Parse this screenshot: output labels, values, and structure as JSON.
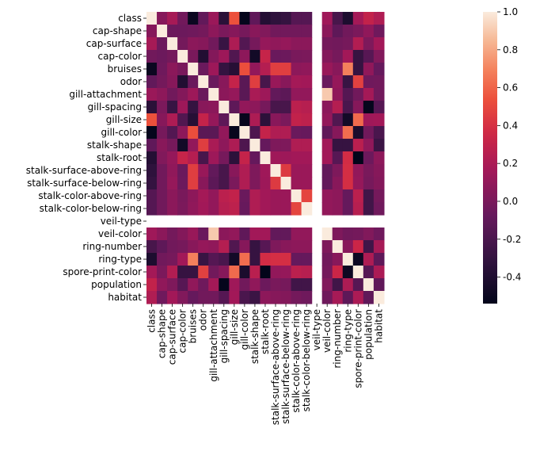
{
  "chart_data": {
    "type": "heatmap",
    "title": "",
    "xlabel": "",
    "ylabel": "",
    "labels": [
      "class",
      "cap-shape",
      "cap-surface",
      "cap-color",
      "bruises",
      "odor",
      "gill-attachment",
      "gill-spacing",
      "gill-size",
      "gill-color",
      "stalk-shape",
      "stalk-root",
      "stalk-surface-above-ring",
      "stalk-surface-below-ring",
      "stalk-color-above-ring",
      "stalk-color-below-ring",
      "veil-type",
      "veil-color",
      "ring-number",
      "ring-type",
      "spore-print-color",
      "population",
      "habitat"
    ],
    "x_labels": [
      "class",
      "cap-shape",
      "cap-surface",
      "cap-color",
      "bruises",
      "odor",
      "gill-attachment",
      "gill-spacing",
      "gill-size",
      "gill-color",
      "stalk-shape",
      "stalk-root",
      "stalk-surface-above-ring",
      "stalk-surface-below-ring",
      "stalk-color-above-ring",
      "stalk-color-below-ring",
      "veil-type",
      "veil-color",
      "ring-number",
      "ring-type",
      "spore-print-color",
      "population",
      "habitat"
    ],
    "y_labels": [
      "class",
      "cap-shape",
      "cap-surface",
      "cap-color",
      "bruises",
      "odor",
      "gill-attachment",
      "gill-spacing",
      "gill-size",
      "gill-color",
      "stalk-shape",
      "stalk-root",
      "stalk-surface-above-ring",
      "stalk-surface-below-ring",
      "stalk-color-above-ring",
      "stalk-color-below-ring",
      "veil-type",
      "veil-color",
      "ring-number",
      "ring-type",
      "spore-print-color",
      "population",
      "habitat"
    ],
    "colorbar": {
      "min": -0.54,
      "max": 1.0,
      "ticks": [
        "-0.4",
        "-0.2",
        "0.0",
        "0.2",
        "0.4",
        "0.6",
        "0.8",
        "1.0"
      ],
      "tick_values": [
        -0.4,
        -0.2,
        0.0,
        0.2,
        0.4,
        0.6,
        0.8,
        1.0
      ]
    },
    "colormap": "rocket",
    "matrix": [
      [
        1.0,
        0.05,
        0.18,
        -0.03,
        -0.5,
        -0.09,
        0.13,
        -0.35,
        0.54,
        -0.53,
        -0.1,
        -0.38,
        -0.33,
        -0.3,
        -0.15,
        -0.15,
        null,
        0.15,
        -0.21,
        -0.41,
        0.17,
        0.3,
        0.22
      ],
      [
        0.05,
        1.0,
        -0.05,
        -0.05,
        -0.04,
        -0.02,
        0.08,
        0.01,
        0.05,
        -0.01,
        0.06,
        0.03,
        -0.03,
        -0.03,
        -0.03,
        -0.03,
        null,
        0.07,
        -0.11,
        -0.03,
        0.01,
        0.09,
        -0.04
      ],
      [
        0.18,
        -0.05,
        1.0,
        -0.02,
        0.07,
        0.05,
        -0.03,
        -0.28,
        0.21,
        -0.16,
        -0.01,
        0.11,
        0.09,
        0.11,
        0.07,
        0.07,
        null,
        -0.02,
        -0.03,
        -0.01,
        0.23,
        0.02,
        0.16
      ],
      [
        -0.03,
        -0.05,
        -0.02,
        1.0,
        0.0,
        -0.39,
        0.04,
        0.14,
        -0.17,
        0.08,
        -0.46,
        0.32,
        -0.06,
        -0.05,
        0.0,
        0.01,
        null,
        0.04,
        -0.01,
        0.16,
        -0.29,
        -0.14,
        0.03
      ],
      [
        -0.5,
        -0.04,
        0.07,
        0.0,
        1.0,
        -0.06,
        0.14,
        -0.3,
        -0.37,
        0.53,
        0.1,
        0.24,
        0.46,
        0.46,
        0.08,
        0.09,
        null,
        0.12,
        0.06,
        0.69,
        -0.29,
        0.09,
        -0.08
      ],
      [
        -0.09,
        -0.02,
        0.05,
        -0.39,
        -0.06,
        1.0,
        -0.06,
        0.06,
        0.31,
        -0.13,
        0.46,
        -0.21,
        0.12,
        0.06,
        0.17,
        0.16,
        null,
        -0.06,
        0.11,
        -0.28,
        0.47,
        -0.04,
        -0.03
      ],
      [
        0.13,
        0.08,
        -0.03,
        0.04,
        0.14,
        -0.06,
        1.0,
        0.07,
        0.11,
        -0.13,
        0.19,
        0.14,
        -0.09,
        -0.12,
        0.1,
        0.1,
        null,
        0.9,
        0.09,
        -0.15,
        -0.03,
        0.17,
        -0.03
      ],
      [
        -0.35,
        0.01,
        -0.28,
        0.14,
        -0.3,
        0.06,
        0.07,
        1.0,
        -0.11,
        0.1,
        0.08,
        -0.01,
        -0.21,
        -0.21,
        0.27,
        0.25,
        null,
        0.07,
        0.24,
        -0.2,
        0.05,
        -0.53,
        -0.15
      ],
      [
        0.54,
        0.05,
        0.21,
        -0.17,
        -0.37,
        0.31,
        0.11,
        -0.11,
        1.0,
        -0.52,
        0.21,
        -0.34,
        0.06,
        0.01,
        0.3,
        0.28,
        null,
        0.1,
        -0.17,
        -0.46,
        0.62,
        0.15,
        0.16
      ],
      [
        -0.53,
        -0.01,
        -0.16,
        0.08,
        0.53,
        -0.13,
        -0.13,
        0.1,
        -0.52,
        1.0,
        -0.18,
        0.31,
        0.22,
        0.22,
        -0.06,
        -0.07,
        null,
        -0.1,
        0.05,
        0.63,
        -0.42,
        -0.03,
        -0.2
      ],
      [
        -0.1,
        0.06,
        -0.01,
        -0.46,
        0.1,
        0.46,
        0.19,
        0.08,
        0.21,
        -0.18,
        1.0,
        -0.08,
        0.02,
        0.02,
        0.22,
        0.22,
        null,
        0.16,
        -0.29,
        -0.29,
        0.26,
        0.09,
        -0.27
      ],
      [
        -0.38,
        0.03,
        0.11,
        0.32,
        0.24,
        -0.21,
        0.14,
        -0.01,
        -0.34,
        0.31,
        -0.08,
        1.0,
        0.15,
        0.14,
        0.16,
        0.16,
        null,
        0.16,
        -0.14,
        0.38,
        -0.54,
        -0.05,
        0.08
      ],
      [
        -0.33,
        -0.03,
        0.09,
        -0.06,
        0.46,
        0.12,
        -0.09,
        -0.21,
        0.06,
        0.22,
        0.02,
        0.15,
        1.0,
        0.44,
        0.13,
        0.13,
        null,
        -0.09,
        0.02,
        0.39,
        0.1,
        0.0,
        0.05
      ],
      [
        -0.3,
        -0.03,
        0.11,
        -0.05,
        0.46,
        0.06,
        -0.12,
        -0.21,
        0.01,
        0.22,
        0.02,
        0.14,
        0.44,
        1.0,
        0.13,
        0.13,
        null,
        -0.09,
        0.06,
        0.39,
        0.11,
        -0.01,
        0.04
      ],
      [
        -0.15,
        -0.03,
        0.07,
        0.0,
        0.08,
        0.17,
        0.1,
        0.27,
        0.3,
        -0.06,
        0.22,
        0.16,
        0.13,
        0.13,
        1.0,
        0.49,
        null,
        0.1,
        0.08,
        -0.08,
        0.27,
        -0.24,
        -0.02
      ],
      [
        -0.15,
        -0.03,
        0.07,
        0.01,
        0.09,
        0.16,
        0.1,
        0.25,
        0.28,
        -0.07,
        0.22,
        0.16,
        0.13,
        0.13,
        0.49,
        1.0,
        null,
        0.1,
        0.08,
        -0.08,
        0.25,
        -0.24,
        -0.04
      ],
      [
        null,
        null,
        null,
        null,
        null,
        null,
        null,
        null,
        null,
        null,
        null,
        null,
        null,
        null,
        null,
        null,
        null,
        null,
        null,
        null,
        null,
        null,
        null
      ],
      [
        0.15,
        0.07,
        -0.02,
        0.04,
        0.12,
        -0.06,
        0.9,
        0.07,
        0.1,
        -0.1,
        0.16,
        0.16,
        -0.09,
        -0.09,
        0.1,
        0.1,
        null,
        1.0,
        0.02,
        -0.03,
        -0.02,
        0.03,
        -0.04
      ],
      [
        -0.21,
        -0.11,
        -0.03,
        -0.01,
        0.06,
        0.11,
        0.09,
        0.24,
        -0.17,
        0.05,
        -0.29,
        -0.14,
        0.02,
        0.06,
        0.08,
        0.08,
        null,
        0.02,
        1.0,
        0.06,
        0.34,
        -0.24,
        0.18
      ],
      [
        -0.41,
        -0.03,
        -0.01,
        0.16,
        0.69,
        -0.28,
        -0.15,
        -0.2,
        -0.46,
        0.63,
        -0.29,
        0.38,
        0.39,
        0.39,
        -0.08,
        -0.08,
        null,
        -0.03,
        0.06,
        1.0,
        -0.49,
        0.21,
        -0.11
      ],
      [
        0.17,
        0.01,
        0.23,
        -0.29,
        -0.29,
        0.47,
        -0.03,
        0.05,
        0.62,
        -0.42,
        0.26,
        -0.54,
        0.1,
        0.11,
        0.27,
        0.25,
        null,
        -0.02,
        0.34,
        -0.49,
        1.0,
        -0.14,
        0.2
      ],
      [
        0.3,
        0.09,
        0.02,
        -0.14,
        0.09,
        -0.04,
        0.17,
        -0.53,
        0.15,
        -0.03,
        0.09,
        -0.05,
        0.0,
        -0.01,
        -0.24,
        -0.24,
        null,
        0.03,
        -0.24,
        0.21,
        -0.14,
        1.0,
        -0.1
      ],
      [
        0.22,
        -0.04,
        0.16,
        0.03,
        -0.08,
        -0.03,
        -0.03,
        -0.15,
        0.16,
        -0.2,
        -0.27,
        0.08,
        0.05,
        0.04,
        -0.02,
        -0.04,
        null,
        -0.04,
        0.18,
        -0.11,
        0.2,
        -0.1,
        1.0
      ]
    ]
  }
}
